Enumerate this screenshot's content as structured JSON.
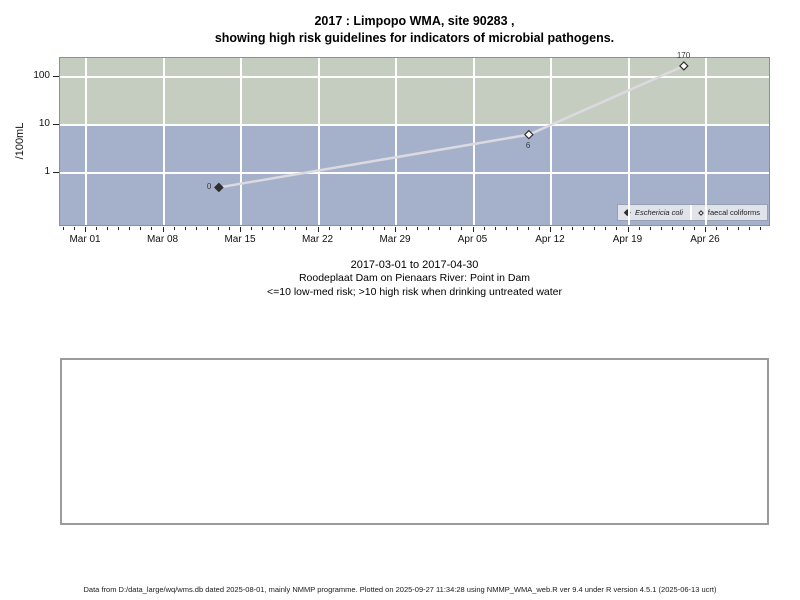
{
  "title": {
    "line1": "2017 : Limpopo WMA, site 90283 ,",
    "line2": "showing high risk guidelines for indicators of microbial pathogens."
  },
  "chart_data": {
    "type": "line",
    "y_scale": "log10",
    "ylabel": "/100mL",
    "x_origin": "2017-03-01",
    "x_tick_labels": [
      "Mar 01",
      "Mar 08",
      "Mar 15",
      "Mar 22",
      "Mar 29",
      "Apr 05",
      "Apr 12",
      "Apr 19",
      "Apr 26"
    ],
    "x_major_tick_days": [
      0,
      7,
      14,
      21,
      28,
      35,
      42,
      49,
      56
    ],
    "x_minor_tick_days_range": [
      -2,
      61
    ],
    "y_tick_values": [
      1,
      10,
      100
    ],
    "y_tick_labels": [
      "1",
      "10",
      "100"
    ],
    "risk_threshold": 10,
    "bands": {
      "high_risk_color": "#c5cdc0",
      "low_risk_color": "#a5b1cb",
      "boundary_value": 10
    },
    "series": [
      {
        "name": "Eschericia coli",
        "marker": "filled-diamond",
        "points": [
          {
            "date": "2017-03-13",
            "value": 0,
            "plot_value": 0.5,
            "label": "0",
            "label_pos": "left"
          }
        ]
      },
      {
        "name": "faecal coliforms",
        "marker": "open-diamond",
        "points": [
          {
            "date": "2017-04-10",
            "value": 6,
            "plot_value": 6.3,
            "label": "6",
            "label_pos": "below"
          },
          {
            "date": "2017-04-24",
            "value": 170,
            "plot_value": 170,
            "label": "170",
            "label_pos": "above"
          }
        ]
      }
    ],
    "line": {
      "color": "#dcdae0",
      "connects": [
        [
          "2017-03-13",
          0.5
        ],
        [
          "2017-04-10",
          6.3
        ],
        [
          "2017-04-24",
          170
        ]
      ]
    },
    "legend": {
      "items": [
        {
          "label": "Eschericia coli",
          "marker": "filled-diamond",
          "italic": true
        },
        {
          "label": "faecal coliforms",
          "marker": "open-diamond",
          "italic": false
        }
      ],
      "position": "bottom-right-inside"
    }
  },
  "caption": {
    "line1": "2017-03-01 to 2017-04-30",
    "line2": "Roodeplaat Dam on Pienaars River: Point in Dam",
    "line3": "<=10 low-med risk; >10 high risk when drinking untreated water"
  },
  "footer": {
    "text": "Data from D:/data_large/wq/wms.db dated 2025-08-01, mainly NMMP programme. Plotted on 2025-09-27 11:34:28 using NMMP_WMA_web.R ver 9.4 under R version 4.5.1 (2025-06-13 ucrt)"
  }
}
